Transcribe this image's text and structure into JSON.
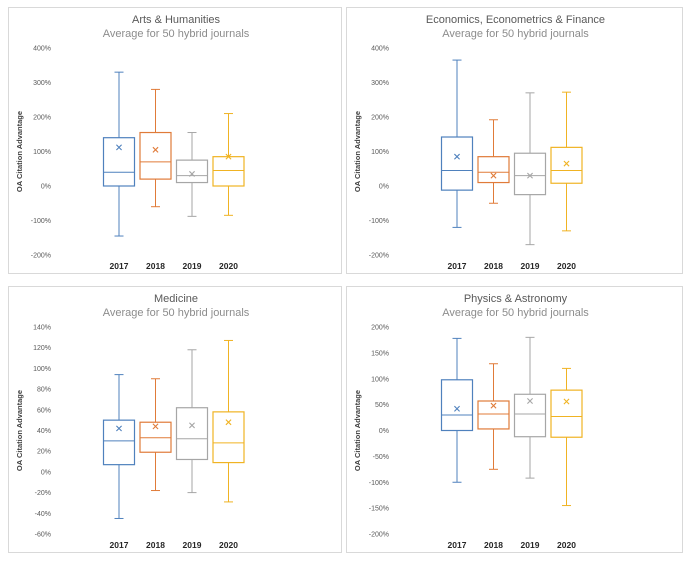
{
  "chart_data": [
    {
      "type": "box",
      "title": "Arts & Humanities",
      "subtitle": "Average for 50 hybrid journals",
      "ylabel": "OA Citation Advantage",
      "categories": [
        "2017",
        "2018",
        "2019",
        "2020"
      ],
      "ylim": [
        -200,
        400
      ],
      "yticks": [
        400,
        300,
        200,
        100,
        0,
        -100,
        -200
      ],
      "ytick_labels": [
        "400%",
        "300%",
        "200%",
        "100%",
        "0%",
        "-100%",
        "-200%"
      ],
      "colors": [
        "#4f81bd",
        "#e07b39",
        "#a6a6a6",
        "#f0b323"
      ],
      "boxes": [
        {
          "min": -145,
          "q1": 0,
          "median": 40,
          "q3": 140,
          "max": 330,
          "mean": 112
        },
        {
          "min": -60,
          "q1": 20,
          "median": 70,
          "q3": 155,
          "max": 280,
          "mean": 105
        },
        {
          "min": -88,
          "q1": 10,
          "median": 30,
          "q3": 75,
          "max": 155,
          "mean": 35
        },
        {
          "min": -85,
          "q1": 0,
          "median": 45,
          "q3": 85,
          "max": 210,
          "mean": 85
        }
      ]
    },
    {
      "type": "box",
      "title": "Economics, Econometrics & Finance",
      "subtitle": "Average for 50 hybrid journals",
      "ylabel": "OA Citation Advantage",
      "categories": [
        "2017",
        "2018",
        "2019",
        "2020"
      ],
      "ylim": [
        -200,
        400
      ],
      "yticks": [
        400,
        300,
        200,
        100,
        0,
        -100,
        -200
      ],
      "ytick_labels": [
        "400%",
        "300%",
        "200%",
        "100%",
        "0%",
        "-100%",
        "-200%"
      ],
      "colors": [
        "#4f81bd",
        "#e07b39",
        "#a6a6a6",
        "#f0b323"
      ],
      "boxes": [
        {
          "min": -120,
          "q1": -12,
          "median": 45,
          "q3": 142,
          "max": 365,
          "mean": 85
        },
        {
          "min": -50,
          "q1": 10,
          "median": 40,
          "q3": 85,
          "max": 192,
          "mean": 30
        },
        {
          "min": -170,
          "q1": -25,
          "median": 30,
          "q3": 95,
          "max": 270,
          "mean": 30
        },
        {
          "min": -130,
          "q1": 8,
          "median": 45,
          "q3": 112,
          "max": 272,
          "mean": 65
        }
      ]
    },
    {
      "type": "box",
      "title": "Medicine",
      "subtitle": "Average for 50 hybrid journals",
      "ylabel": "OA Citation Advantage",
      "categories": [
        "2017",
        "2018",
        "2019",
        "2020"
      ],
      "ylim": [
        -60,
        140
      ],
      "yticks": [
        140,
        120,
        100,
        80,
        60,
        40,
        20,
        0,
        -20,
        -40,
        -60
      ],
      "ytick_labels": [
        "140%",
        "120%",
        "100%",
        "80%",
        "60%",
        "40%",
        "20%",
        "0%",
        "-20%",
        "-40%",
        "-60%"
      ],
      "colors": [
        "#4f81bd",
        "#e07b39",
        "#a6a6a6",
        "#f0b323"
      ],
      "boxes": [
        {
          "min": -45,
          "q1": 7,
          "median": 30,
          "q3": 50,
          "max": 94,
          "mean": 42
        },
        {
          "min": -18,
          "q1": 19,
          "median": 33,
          "q3": 48,
          "max": 90,
          "mean": 44
        },
        {
          "min": -20,
          "q1": 12,
          "median": 32,
          "q3": 62,
          "max": 118,
          "mean": 45
        },
        {
          "min": -29,
          "q1": 9,
          "median": 28,
          "q3": 58,
          "max": 127,
          "mean": 48
        }
      ]
    },
    {
      "type": "box",
      "title": "Physics & Astronomy",
      "subtitle": "Average for 50 hybrid journals",
      "ylabel": "OA Citation Advantage",
      "categories": [
        "2017",
        "2018",
        "2019",
        "2020"
      ],
      "ylim": [
        -200,
        200
      ],
      "yticks": [
        200,
        150,
        100,
        50,
        0,
        -50,
        -100,
        -150,
        -200
      ],
      "ytick_labels": [
        "200%",
        "150%",
        "100%",
        "50%",
        "0%",
        "-50%",
        "-100%",
        "-150%",
        "-200%"
      ],
      "colors": [
        "#4f81bd",
        "#e07b39",
        "#a6a6a6",
        "#f0b323"
      ],
      "boxes": [
        {
          "min": -100,
          "q1": 0,
          "median": 30,
          "q3": 98,
          "max": 178,
          "mean": 42
        },
        {
          "min": -75,
          "q1": 3,
          "median": 32,
          "q3": 57,
          "max": 129,
          "mean": 48
        },
        {
          "min": -92,
          "q1": -12,
          "median": 32,
          "q3": 70,
          "max": 180,
          "mean": 57
        },
        {
          "min": -145,
          "q1": -13,
          "median": 27,
          "q3": 78,
          "max": 120,
          "mean": 56
        }
      ]
    }
  ]
}
